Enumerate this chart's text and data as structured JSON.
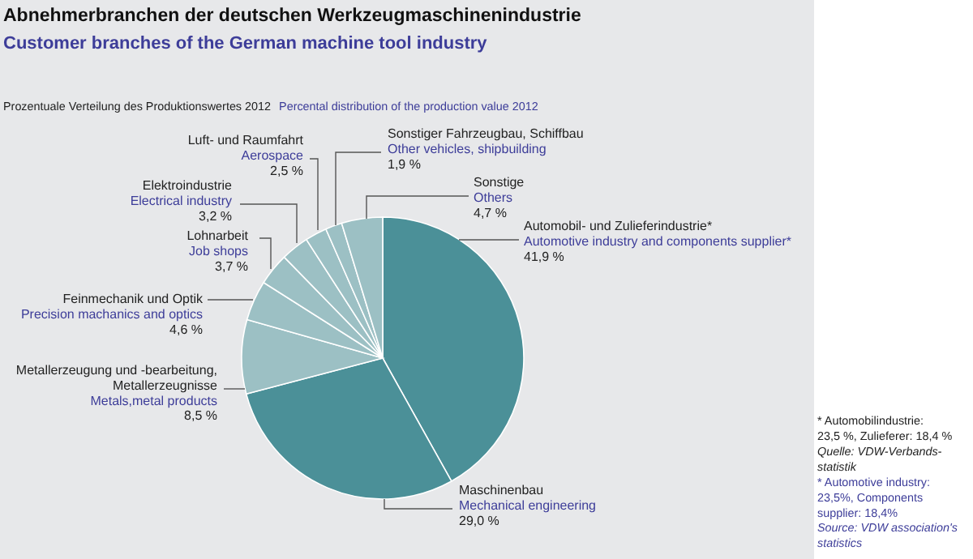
{
  "chart_data": {
    "type": "pie",
    "title": "Abnehmerbranchen der deutschen Werkzeugmaschinenindustrie",
    "subtitle": "Customer branches of the German machine tool industry",
    "categories": [
      "Automobil- und Zulieferindustrie*\nAutomotive industry and components supplier*",
      "Maschinenbau\nMechanical engineering",
      "Metallerzeugung und -bearbeitung,\nMetallerzeugnisse\nMetals,metal products",
      "Feinmechanik und Optik\nPrecision machanics and optics",
      "Lohnarbeit\nJob shops",
      "Elektroindustrie\nElectrical industry",
      "Luft- und Raumfahrt\nAerospace",
      "Sonstiger Fahrzeugbau, Schiffbau\nOther vehicles, shipbuilding",
      "Sonstige\nOthers"
    ],
    "values": [
      41.9,
      29.0,
      8.5,
      4.6,
      3.7,
      3.2,
      2.5,
      1.9,
      4.7
    ],
    "value_labels": [
      "41,9 %",
      "29,0 %",
      "8,5 %",
      "4,6 %",
      "3,7 %",
      "3,2 %",
      "2,5 %",
      "1,9 %",
      "4,7 %"
    ],
    "colors": [
      "#4b9098",
      "#4b9098",
      "#9cc0c4",
      "#9cc0c4",
      "#9cc0c4",
      "#9cc0c4",
      "#9cc0c4",
      "#9cc0c4",
      "#9cc0c4"
    ],
    "annotations": [
      "Prozentuale Verteilung des Produktionswertes 2012",
      "Percental distribution of the production value 2012",
      "* Automobilindustrie:\n23,5 %, Zulieferer: 18,4 %",
      "Quelle: VDW-Verbands-\nstatistik",
      "* Automotive industry:\n23,5%, Components\nsupplier: 18,4%",
      "Source: VDW association's\nstatistics"
    ]
  }
}
